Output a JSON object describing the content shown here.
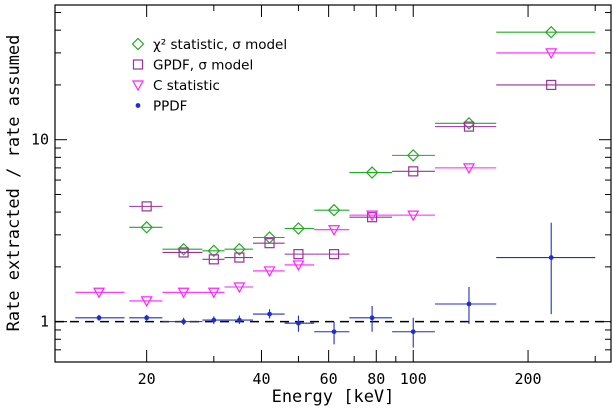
{
  "chart_data": {
    "type": "scatter",
    "xlabel": "Energy [keV]",
    "ylabel": "Rate extracted / rate assumed",
    "xscale": "log",
    "yscale": "log",
    "xlim": [
      11.5,
      330
    ],
    "ylim": [
      0.6,
      55
    ],
    "xticks": [
      20,
      40,
      60,
      80,
      100,
      200
    ],
    "yticks": [
      1,
      10
    ],
    "grid": false,
    "legend_position": "top-left",
    "reference_line": {
      "y": 1,
      "style": "dashed",
      "color": "#000000"
    },
    "series": [
      {
        "name": "χ² statistic, σ model",
        "marker": "diamond-open",
        "color": "#22aa22",
        "points": [
          {
            "x": 20,
            "xerr": [
              18,
              22
            ],
            "y": 3.3
          },
          {
            "x": 25,
            "xerr": [
              22,
              28
            ],
            "y": 2.5
          },
          {
            "x": 30,
            "xerr": [
              28,
              32
            ],
            "y": 2.45
          },
          {
            "x": 35,
            "xerr": [
              32,
              38
            ],
            "y": 2.5
          },
          {
            "x": 42,
            "xerr": [
              38,
              46
            ],
            "y": 2.9
          },
          {
            "x": 50,
            "xerr": [
              46,
              55
            ],
            "y": 3.25
          },
          {
            "x": 62,
            "xerr": [
              55,
              68
            ],
            "y": 4.1
          },
          {
            "x": 78,
            "xerr": [
              68,
              88
            ],
            "y": 6.6
          },
          {
            "x": 100,
            "xerr": [
              88,
              114
            ],
            "y": 8.2
          },
          {
            "x": 140,
            "xerr": [
              114,
              165
            ],
            "y": 12.3
          },
          {
            "x": 230,
            "xerr": [
              165,
              300
            ],
            "y": 39
          }
        ]
      },
      {
        "name": "GPDF, σ model",
        "marker": "square-open",
        "color": "#993399",
        "points": [
          {
            "x": 20,
            "xerr": [
              18,
              22
            ],
            "y": 4.3
          },
          {
            "x": 25,
            "xerr": [
              22,
              28
            ],
            "y": 2.4
          },
          {
            "x": 30,
            "xerr": [
              28,
              32
            ],
            "y": 2.2
          },
          {
            "x": 35,
            "xerr": [
              32,
              38
            ],
            "y": 2.25
          },
          {
            "x": 42,
            "xerr": [
              38,
              46
            ],
            "y": 2.7
          },
          {
            "x": 50,
            "xerr": [
              46,
              55
            ],
            "y": 2.35
          },
          {
            "x": 62,
            "xerr": [
              55,
              68
            ],
            "y": 2.35
          },
          {
            "x": 78,
            "xerr": [
              68,
              88
            ],
            "y": 3.75
          },
          {
            "x": 100,
            "xerr": [
              88,
              114
            ],
            "y": 6.7
          },
          {
            "x": 140,
            "xerr": [
              114,
              165
            ],
            "y": 11.8
          },
          {
            "x": 230,
            "xerr": [
              165,
              300
            ],
            "y": 20
          }
        ]
      },
      {
        "name": "C statistic",
        "marker": "triangle-down-open",
        "color": "#ff22ff",
        "points": [
          {
            "x": 15,
            "xerr": [
              13,
              17.5
            ],
            "y": 1.45
          },
          {
            "x": 20,
            "xerr": [
              18,
              22
            ],
            "y": 1.3
          },
          {
            "x": 25,
            "xerr": [
              22,
              28
            ],
            "y": 1.45
          },
          {
            "x": 30,
            "xerr": [
              28,
              32
            ],
            "y": 1.45
          },
          {
            "x": 35,
            "xerr": [
              32,
              38
            ],
            "y": 1.55
          },
          {
            "x": 42,
            "xerr": [
              38,
              46
            ],
            "y": 1.9
          },
          {
            "x": 50,
            "xerr": [
              46,
              55
            ],
            "y": 2.05
          },
          {
            "x": 62,
            "xerr": [
              55,
              68
            ],
            "y": 3.2
          },
          {
            "x": 78,
            "xerr": [
              68,
              88
            ],
            "y": 3.85
          },
          {
            "x": 100,
            "xerr": [
              88,
              114
            ],
            "y": 3.85
          },
          {
            "x": 140,
            "xerr": [
              114,
              165
            ],
            "y": 7.0
          },
          {
            "x": 230,
            "xerr": [
              165,
              300
            ],
            "y": 30
          }
        ]
      },
      {
        "name": "PPDF",
        "marker": "dot",
        "color": "#1f2fcc",
        "points": [
          {
            "x": 15,
            "xerr": [
              13,
              17.5
            ],
            "y": 1.05,
            "yerr": [
              1.01,
              1.09
            ]
          },
          {
            "x": 20,
            "xerr": [
              18,
              22
            ],
            "y": 1.05,
            "yerr": [
              1.01,
              1.09
            ]
          },
          {
            "x": 25,
            "xerr": [
              22,
              28
            ],
            "y": 1.0,
            "yerr": [
              0.96,
              1.05
            ]
          },
          {
            "x": 30,
            "xerr": [
              28,
              32
            ],
            "y": 1.02,
            "yerr": [
              0.97,
              1.07
            ]
          },
          {
            "x": 35,
            "xerr": [
              32,
              38
            ],
            "y": 1.02,
            "yerr": [
              0.97,
              1.08
            ]
          },
          {
            "x": 42,
            "xerr": [
              38,
              46
            ],
            "y": 1.1,
            "yerr": [
              1.04,
              1.17
            ]
          },
          {
            "x": 50,
            "xerr": [
              46,
              55
            ],
            "y": 0.98,
            "yerr": [
              0.88,
              1.08
            ]
          },
          {
            "x": 62,
            "xerr": [
              55,
              68
            ],
            "y": 0.88,
            "yerr": [
              0.75,
              1.0
            ]
          },
          {
            "x": 78,
            "xerr": [
              68,
              88
            ],
            "y": 1.05,
            "yerr": [
              0.88,
              1.22
            ]
          },
          {
            "x": 100,
            "xerr": [
              88,
              114
            ],
            "y": 0.88,
            "yerr": [
              0.72,
              1.05
            ]
          },
          {
            "x": 140,
            "xerr": [
              114,
              165
            ],
            "y": 1.25,
            "yerr": [
              0.97,
              1.55
            ]
          },
          {
            "x": 230,
            "xerr": [
              165,
              300
            ],
            "y": 2.25,
            "yerr": [
              1.1,
              3.5
            ]
          }
        ]
      }
    ]
  }
}
